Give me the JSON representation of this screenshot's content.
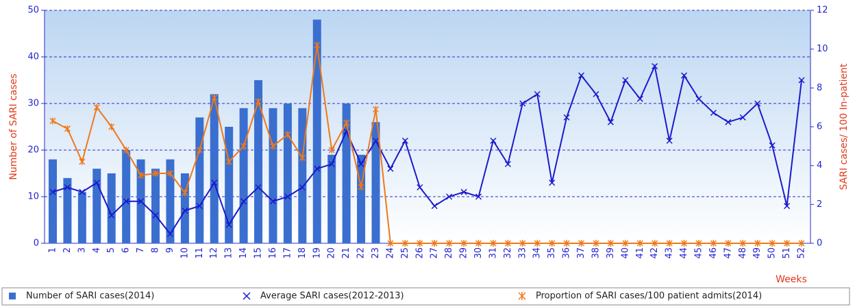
{
  "chart_data": {
    "type": "bar",
    "xlabel": "Weeks",
    "ylabel": "Number of SARI cases",
    "y2label": "SARI cases/ 100 In-patient",
    "categories": [
      "1",
      "2",
      "3",
      "4",
      "5",
      "6",
      "7",
      "8",
      "9",
      "10",
      "11",
      "12",
      "13",
      "14",
      "15",
      "16",
      "17",
      "18",
      "19",
      "20",
      "21",
      "22",
      "23",
      "24",
      "25",
      "26",
      "27",
      "28",
      "29",
      "30",
      "31",
      "32",
      "33",
      "34",
      "35",
      "36",
      "37",
      "38",
      "39",
      "40",
      "41",
      "42",
      "43",
      "44",
      "45",
      "46",
      "47",
      "48",
      "49",
      "50",
      "51",
      "52"
    ],
    "ylim": [
      0,
      50
    ],
    "yticks": [
      0,
      10,
      20,
      30,
      40,
      50
    ],
    "y2lim": [
      0,
      12
    ],
    "y2ticks": [
      0,
      2,
      4,
      6,
      8,
      10,
      12
    ],
    "grid": true,
    "series": [
      {
        "name": "Number of SARI cases(2014)",
        "color": "#3a6fd0",
        "type": "bar",
        "values": [
          18,
          14,
          11,
          16,
          15,
          20,
          18,
          16,
          18,
          15,
          27,
          32,
          25,
          29,
          35,
          29,
          30,
          29,
          48,
          19,
          30,
          19,
          26,
          null,
          null,
          null,
          null,
          null,
          null,
          null,
          null,
          null,
          null,
          null,
          null,
          null,
          null,
          null,
          null,
          null,
          null,
          null,
          null,
          null,
          null,
          null,
          null,
          null,
          null,
          null,
          null,
          null
        ]
      },
      {
        "name": "Average SARI cases(2012-2013)",
        "color": "#1a1acc",
        "type": "line",
        "values": [
          11,
          12,
          11,
          13,
          6,
          9,
          9,
          6,
          2,
          7,
          8,
          13,
          4,
          9,
          12,
          9,
          10,
          12,
          16,
          17,
          24,
          17,
          22,
          16,
          22,
          12,
          8,
          10,
          11,
          10,
          22,
          17,
          30,
          32,
          13,
          27,
          36,
          32,
          26,
          35,
          31,
          38,
          22,
          36,
          31,
          28,
          26,
          27,
          30,
          21,
          8,
          35
        ]
      },
      {
        "name": "Proportion of SARI cases/100 patient admits(2014)",
        "color": "#f07818",
        "type": "line",
        "axis": "y2",
        "values": [
          6.3,
          5.9,
          4.2,
          7,
          6,
          4.8,
          3.5,
          3.6,
          3.6,
          2.6,
          4.8,
          7.5,
          4.2,
          5,
          7.3,
          5,
          5.6,
          4.4,
          10.2,
          4.8,
          6.2,
          2.9,
          6.9,
          0,
          0,
          0,
          0,
          0,
          0,
          0,
          0,
          0,
          0,
          0,
          0,
          0,
          0,
          0,
          0,
          0,
          0,
          0,
          0,
          0,
          0,
          0,
          0,
          0,
          0,
          0,
          0,
          0
        ]
      }
    ]
  }
}
